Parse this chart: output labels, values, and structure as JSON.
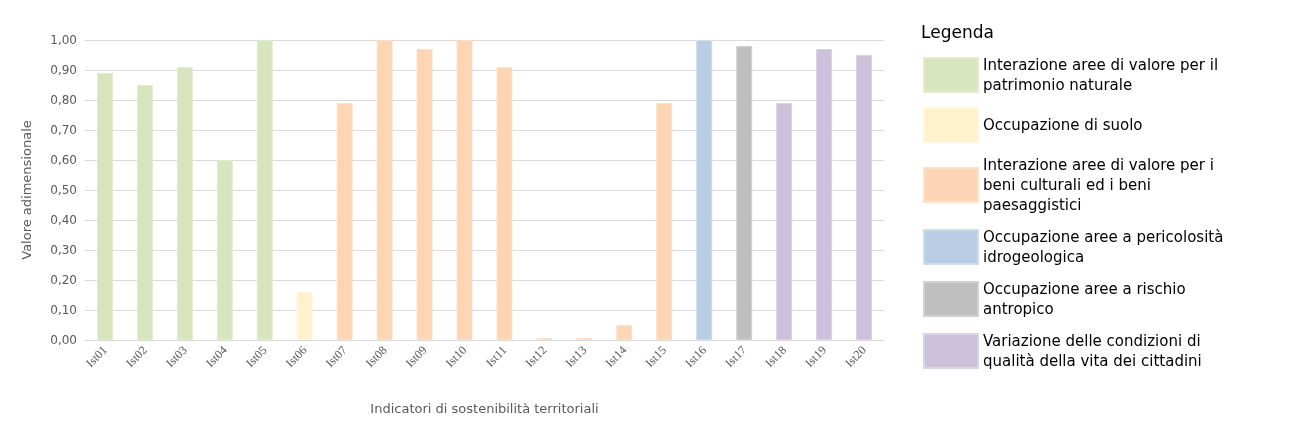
{
  "chart_data": {
    "type": "bar",
    "stacked": true,
    "xlabel": "Indicatori di sostenibilità territoriali",
    "ylabel": "Valore adimensionale",
    "legend_title": "Legenda",
    "legend": "right",
    "grid": "y",
    "categories": [
      "Ist01",
      "Ist02",
      "Ist03",
      "Ist04",
      "Ist05",
      "Ist06",
      "Ist07",
      "Ist08",
      "Ist09",
      "Ist10",
      "Ist11",
      "Ist12",
      "Ist13",
      "Ist14",
      "Ist15",
      "Ist16",
      "Ist17",
      "Ist18",
      "Ist19",
      "Ist20"
    ],
    "ylim": [
      0,
      1
    ],
    "yticks": [
      {
        "value": 0,
        "label": "0,00"
      },
      {
        "value": 0.1,
        "label": "0,10"
      },
      {
        "value": 0.2,
        "label": "0,20"
      },
      {
        "value": 0.3,
        "label": "0,30"
      },
      {
        "value": 0.4,
        "label": "0,40"
      },
      {
        "value": 0.5,
        "label": "0,50"
      },
      {
        "value": 0.6,
        "label": "0,60"
      },
      {
        "value": 0.7,
        "label": "0,70"
      },
      {
        "value": 0.8,
        "label": "0,80"
      },
      {
        "value": 0.9,
        "label": "0,90"
      },
      {
        "value": 1,
        "label": "1,00"
      }
    ],
    "series": [
      {
        "name": "Interazione aree di valore per il patrimonio naturale",
        "color": "#d7e4bd",
        "values": [
          0.89,
          0.85,
          0.91,
          0.6,
          1.0,
          null,
          null,
          null,
          null,
          null,
          null,
          null,
          null,
          null,
          null,
          null,
          null,
          null,
          null,
          null
        ]
      },
      {
        "name": "Occupazione di suolo",
        "color": "#fff2cc",
        "values": [
          null,
          null,
          null,
          null,
          null,
          0.16,
          null,
          null,
          null,
          null,
          null,
          null,
          null,
          null,
          null,
          null,
          null,
          null,
          null,
          null
        ]
      },
      {
        "name": "Interazione aree di valore per i beni culturali ed i beni paesaggistici",
        "color": "#fcd5b5",
        "values": [
          null,
          null,
          null,
          null,
          null,
          null,
          0.79,
          1.0,
          0.97,
          1.0,
          0.91,
          0,
          0,
          0.05,
          0.79,
          null,
          null,
          null,
          null,
          null
        ]
      },
      {
        "name": "Occupazione aree a pericolosità idrogeologica",
        "color": "#b9cde5",
        "values": [
          null,
          null,
          null,
          null,
          null,
          null,
          null,
          null,
          null,
          null,
          null,
          null,
          null,
          null,
          null,
          1.0,
          null,
          null,
          null,
          null
        ]
      },
      {
        "name": "Occupazione aree a rischio antropico",
        "color": "#bfbfbf",
        "values": [
          null,
          null,
          null,
          null,
          null,
          null,
          null,
          null,
          null,
          null,
          null,
          null,
          null,
          null,
          null,
          null,
          0.98,
          null,
          null,
          null
        ]
      },
      {
        "name": "Variazione delle condizioni di qualità della vita dei cittadini",
        "color": "#ccc1da",
        "values": [
          null,
          null,
          null,
          null,
          null,
          null,
          null,
          null,
          null,
          null,
          null,
          null,
          null,
          null,
          null,
          null,
          null,
          0.79,
          0.97,
          0.95
        ]
      }
    ]
  }
}
